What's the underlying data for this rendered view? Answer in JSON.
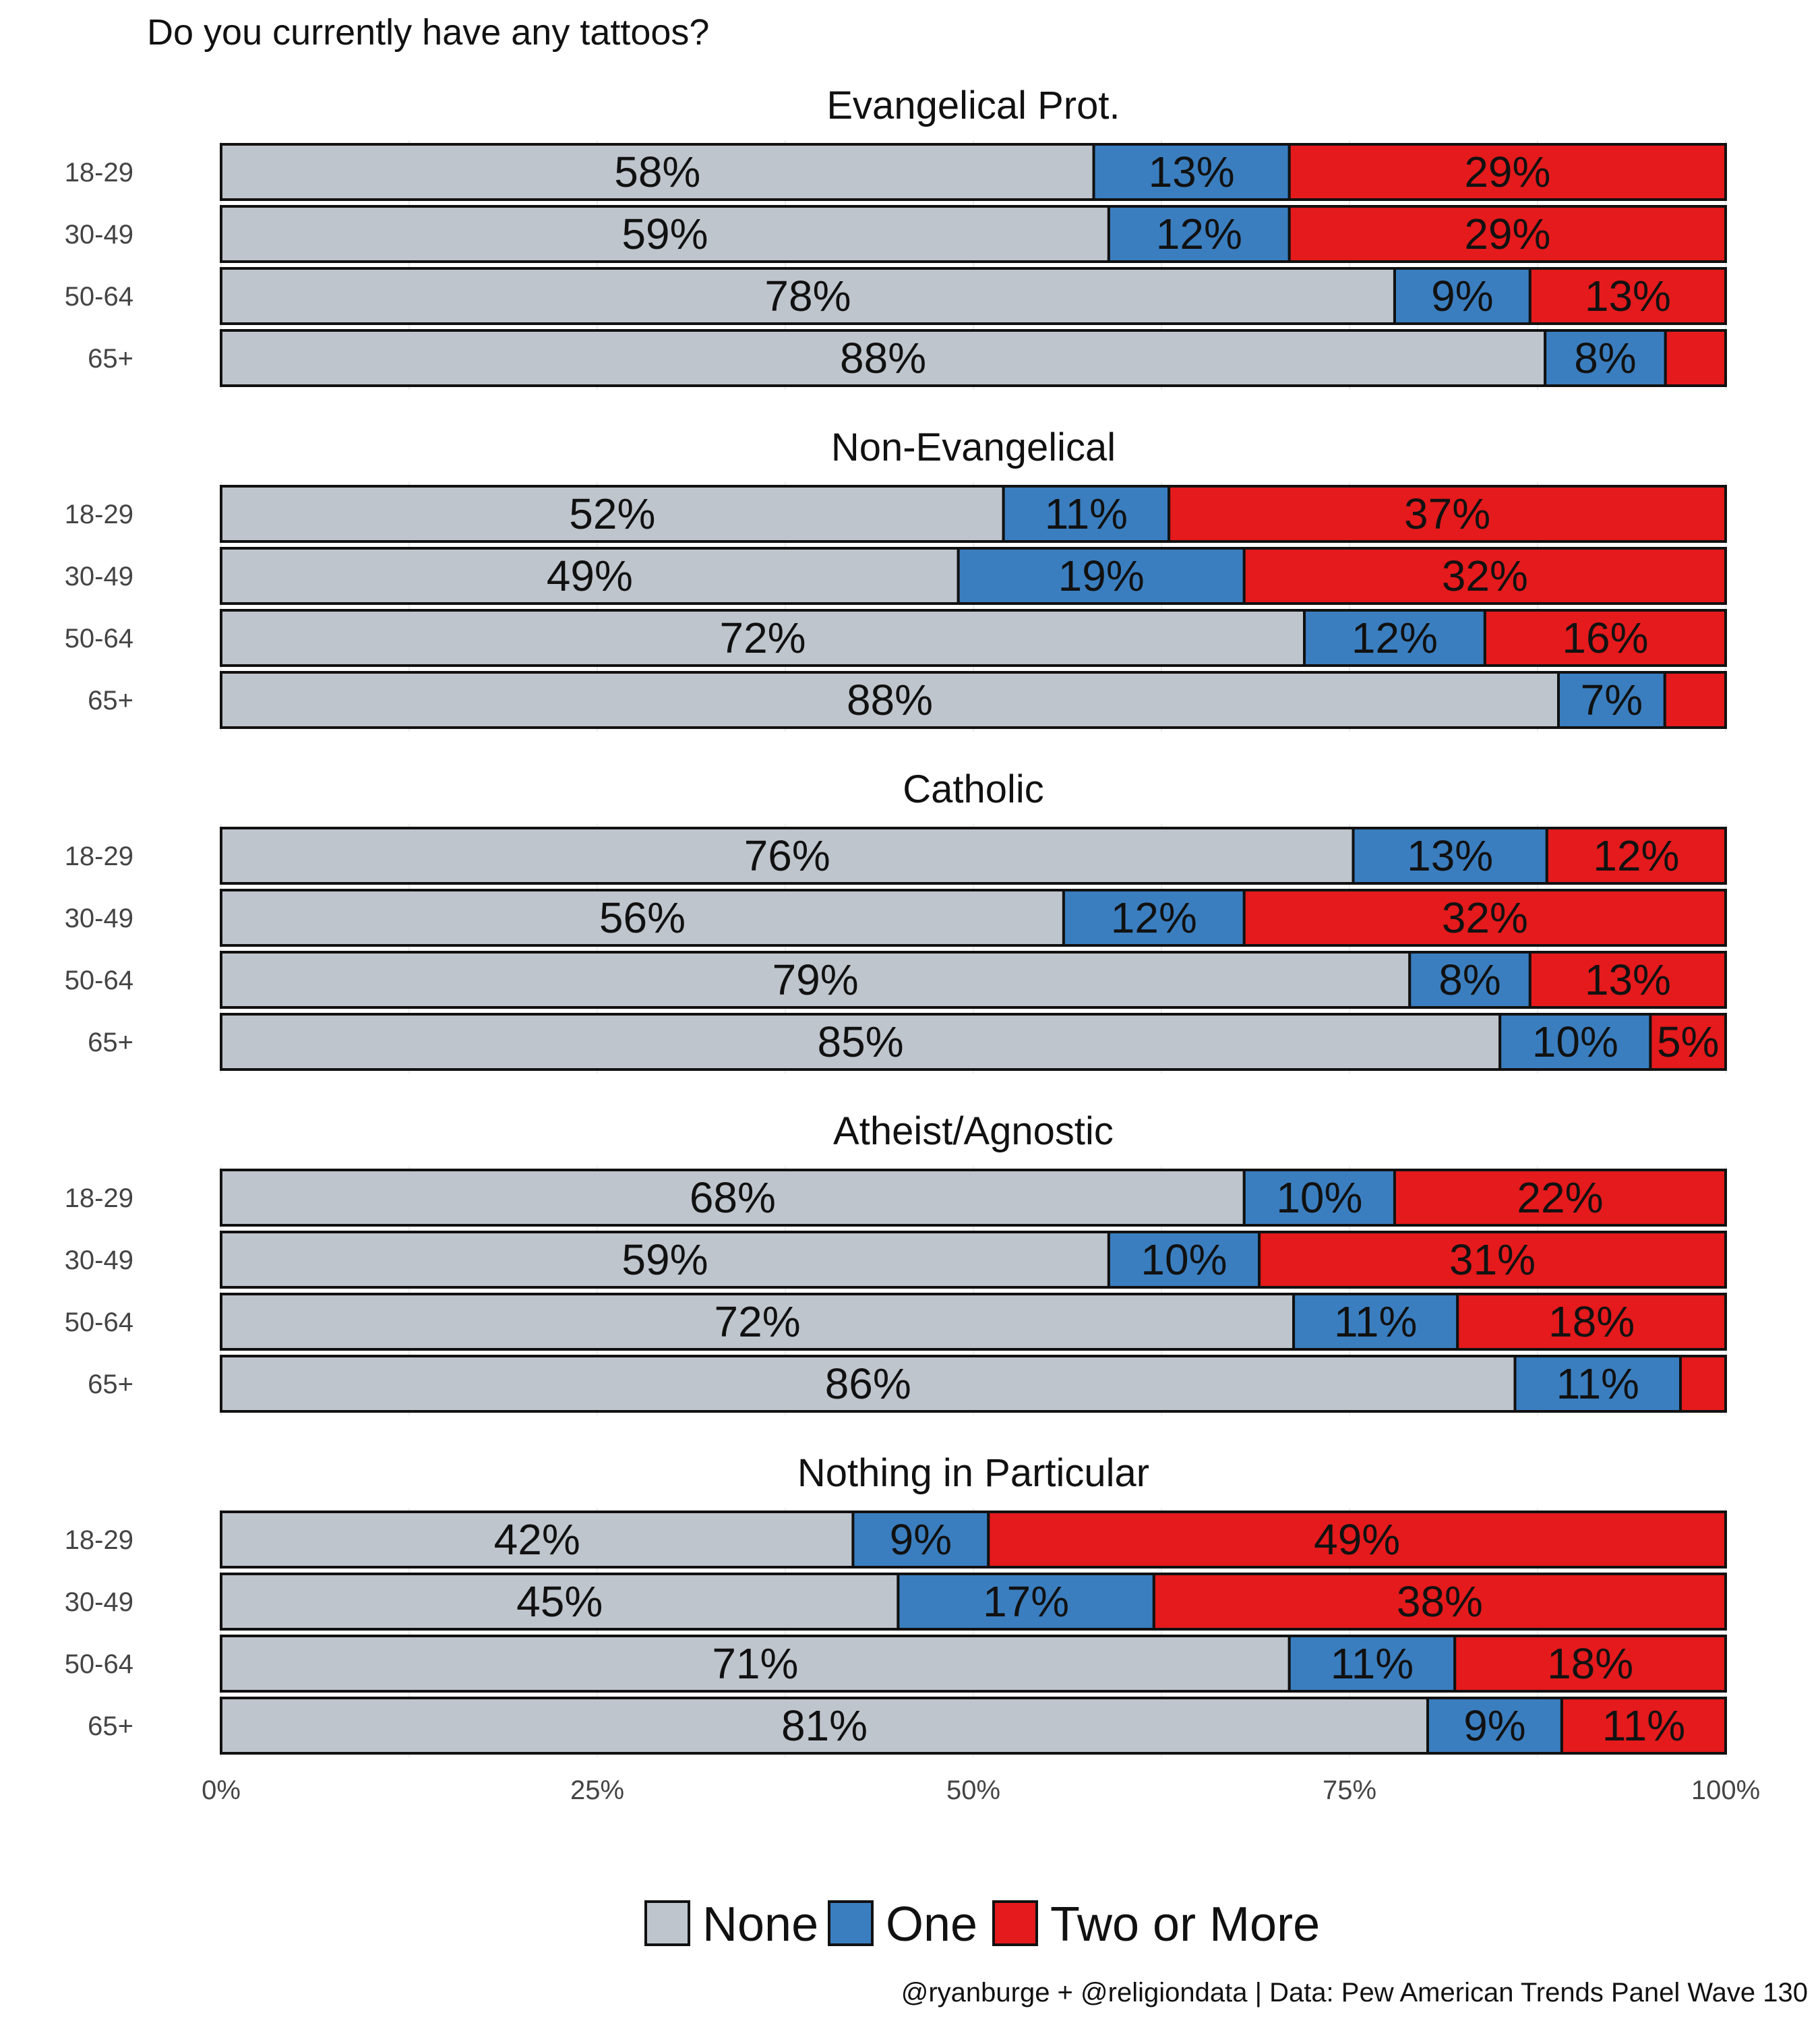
{
  "chart_data": {
    "type": "bar",
    "orientation": "horizontal",
    "stacked": true,
    "title": "Do you currently have any tattoos?",
    "caption": "@ryanburge + @religiondata | Data: Pew American Trends Panel Wave 130",
    "xlim": [
      0,
      100
    ],
    "x_ticks": [
      "0%",
      "25%",
      "50%",
      "75%",
      "100%"
    ],
    "categories": [
      "18-29",
      "30-49",
      "50-64",
      "65+"
    ],
    "series": [
      {
        "name": "None",
        "color": "#bfc5cc"
      },
      {
        "name": "One",
        "color": "#3a7ebf"
      },
      {
        "name": "Two or More",
        "color": "#e41a1c"
      }
    ],
    "facets": [
      {
        "name": "Evangelical Prot.",
        "rows": [
          {
            "values": [
              58,
              13,
              29
            ],
            "labels": [
              "58%",
              "13%",
              "29%"
            ]
          },
          {
            "values": [
              59,
              12,
              29
            ],
            "labels": [
              "59%",
              "12%",
              "29%"
            ]
          },
          {
            "values": [
              78,
              9,
              13
            ],
            "labels": [
              "78%",
              "9%",
              "13%"
            ]
          },
          {
            "values": [
              88,
              8,
              4
            ],
            "labels": [
              "88%",
              "8%",
              ""
            ]
          }
        ]
      },
      {
        "name": "Non-Evangelical",
        "rows": [
          {
            "values": [
              52,
              11,
              37
            ],
            "labels": [
              "52%",
              "11%",
              "37%"
            ]
          },
          {
            "values": [
              49,
              19,
              32
            ],
            "labels": [
              "49%",
              "19%",
              "32%"
            ]
          },
          {
            "values": [
              72,
              12,
              16
            ],
            "labels": [
              "72%",
              "12%",
              "16%"
            ]
          },
          {
            "values": [
              88,
              7,
              4
            ],
            "labels": [
              "88%",
              "7%",
              ""
            ]
          }
        ]
      },
      {
        "name": "Catholic",
        "rows": [
          {
            "values": [
              76,
              13,
              12
            ],
            "labels": [
              "76%",
              "13%",
              "12%"
            ]
          },
          {
            "values": [
              56,
              12,
              32
            ],
            "labels": [
              "56%",
              "12%",
              "32%"
            ]
          },
          {
            "values": [
              79,
              8,
              13
            ],
            "labels": [
              "79%",
              "8%",
              "13%"
            ]
          },
          {
            "values": [
              85,
              10,
              5
            ],
            "labels": [
              "85%",
              "10%",
              "5%"
            ]
          }
        ]
      },
      {
        "name": "Atheist/Agnostic",
        "rows": [
          {
            "values": [
              68,
              10,
              22
            ],
            "labels": [
              "68%",
              "10%",
              "22%"
            ]
          },
          {
            "values": [
              59,
              10,
              31
            ],
            "labels": [
              "59%",
              "10%",
              "31%"
            ]
          },
          {
            "values": [
              72,
              11,
              18
            ],
            "labels": [
              "72%",
              "11%",
              "18%"
            ]
          },
          {
            "values": [
              86,
              11,
              3
            ],
            "labels": [
              "86%",
              "11%",
              ""
            ]
          }
        ]
      },
      {
        "name": "Nothing in Particular",
        "rows": [
          {
            "values": [
              42,
              9,
              49
            ],
            "labels": [
              "42%",
              "9%",
              "49%"
            ]
          },
          {
            "values": [
              45,
              17,
              38
            ],
            "labels": [
              "45%",
              "17%",
              "38%"
            ]
          },
          {
            "values": [
              71,
              11,
              18
            ],
            "labels": [
              "71%",
              "11%",
              "18%"
            ]
          },
          {
            "values": [
              81,
              9,
              11
            ],
            "labels": [
              "81%",
              "9%",
              "11%"
            ]
          }
        ]
      }
    ],
    "legend_position": "bottom",
    "grid": true
  }
}
